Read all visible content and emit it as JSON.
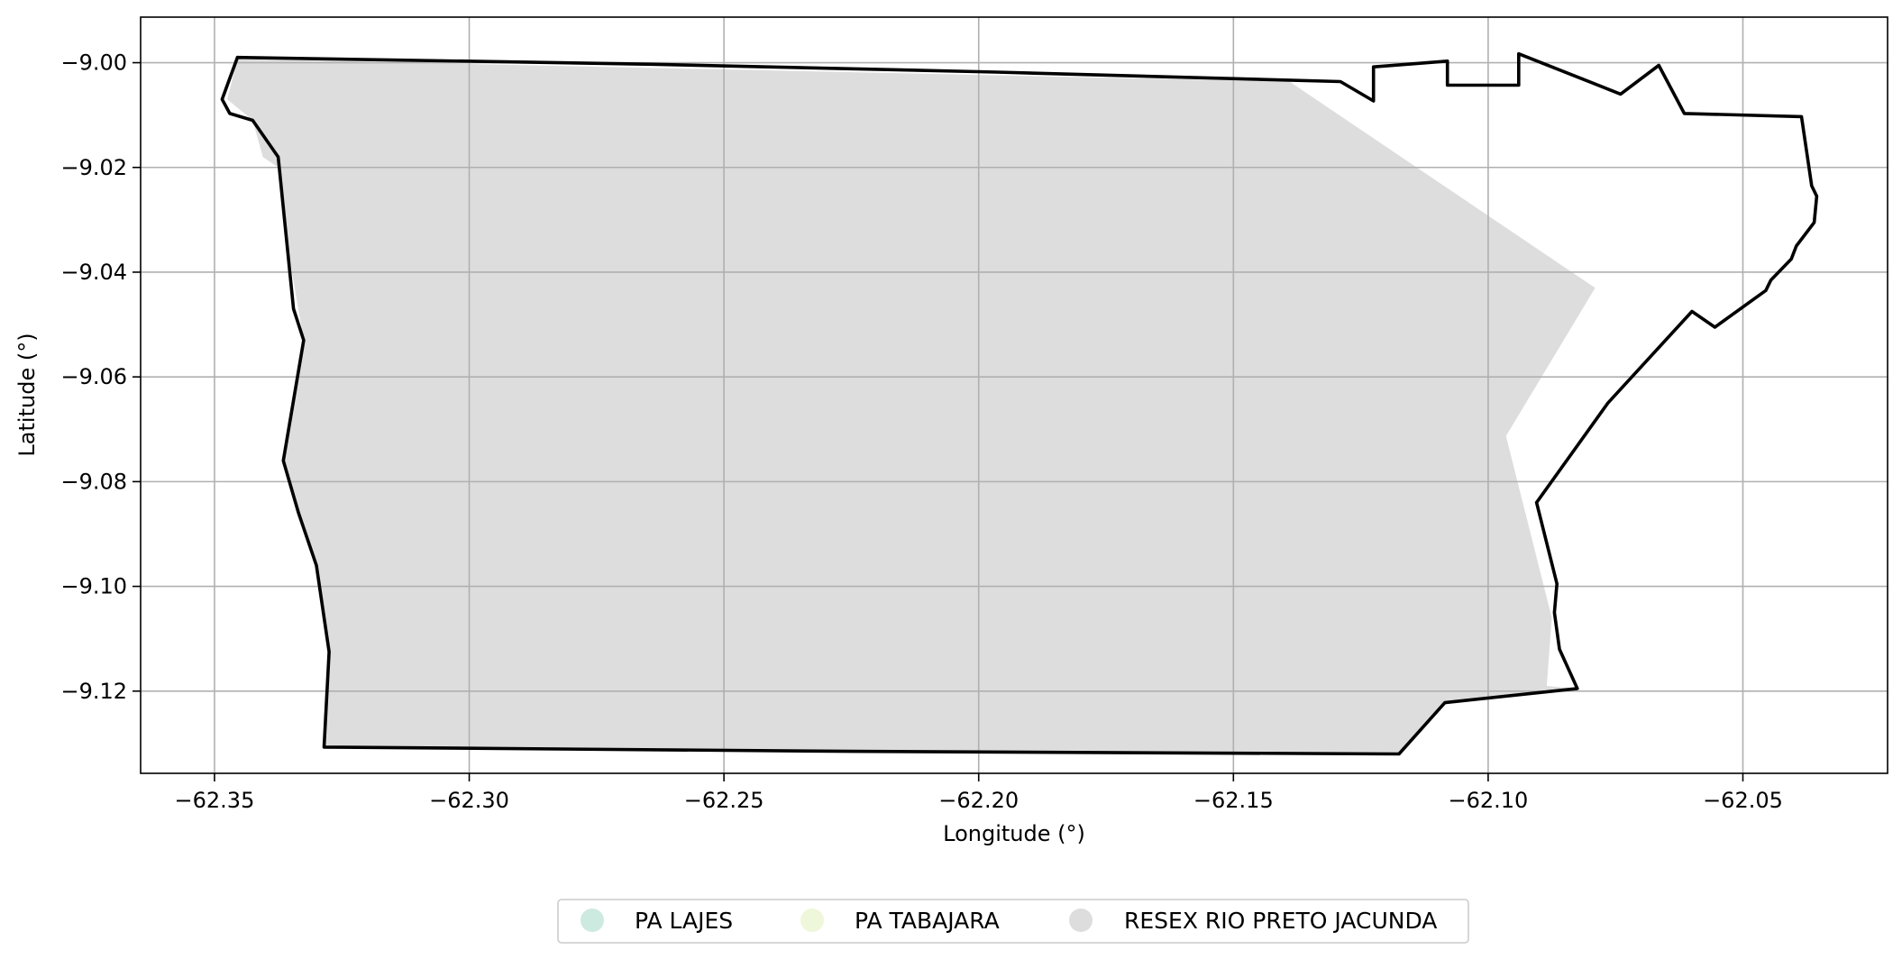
{
  "chart_data": {
    "type": "map",
    "xlabel": "Longitude (°)",
    "ylabel": "Latitude (°)",
    "xlim": [
      -62.3645,
      -62.0216
    ],
    "ylim": [
      -9.1357,
      -8.9913
    ],
    "xticks": [
      -62.35,
      -62.3,
      -62.25,
      -62.2,
      -62.15,
      -62.1,
      -62.05
    ],
    "xtick_labels": [
      "−62.35",
      "−62.30",
      "−62.25",
      "−62.20",
      "−62.15",
      "−62.10",
      "−62.05"
    ],
    "yticks": [
      -9.0,
      -9.02,
      -9.04,
      -9.06,
      -9.08,
      -9.1,
      -9.12
    ],
    "ytick_labels": [
      "−9.00",
      "−9.02",
      "−9.04",
      "−9.06",
      "−9.08",
      "−9.10",
      "−9.12"
    ],
    "grid": true,
    "legend_position": "bottom-center",
    "legend": [
      {
        "label": "PA LAJES",
        "color": "#cdeae0"
      },
      {
        "label": "PA TABAJARA",
        "color": "#eef7d9"
      },
      {
        "label": "RESEX RIO PRETO JACUNDA",
        "color": "#dddddd"
      }
    ],
    "filled_region": {
      "name": "RESEX RIO PRETO JACUNDA",
      "color": "#dddddd",
      "coords": [
        [
          -62.3455,
          -8.9993
        ],
        [
          -62.139,
          -9.0036
        ],
        [
          -62.079,
          -9.043
        ],
        [
          -62.0965,
          -9.0713
        ],
        [
          -62.0875,
          -9.106
        ],
        [
          -62.0885,
          -9.119
        ],
        [
          -62.083,
          -9.1195
        ],
        [
          -62.1085,
          -9.122
        ],
        [
          -62.1175,
          -9.132
        ],
        [
          -62.3285,
          -9.1307
        ],
        [
          -62.3275,
          -9.1125
        ],
        [
          -62.33,
          -9.096
        ],
        [
          -62.3335,
          -9.086
        ],
        [
          -62.3365,
          -9.076
        ],
        [
          -62.3325,
          -9.053
        ],
        [
          -62.3355,
          -9.036
        ],
        [
          -62.3375,
          -9.02
        ],
        [
          -62.3405,
          -9.018
        ],
        [
          -62.3425,
          -9.011
        ],
        [
          -62.3475,
          -9.007
        ]
      ]
    },
    "boundary": {
      "stroke": "#000000",
      "coords": [
        [
          -62.3455,
          -8.999
        ],
        [
          -62.264,
          -9.0003
        ],
        [
          -62.1965,
          -9.0018
        ],
        [
          -62.129,
          -9.0036
        ],
        [
          -62.1225,
          -9.0073
        ],
        [
          -62.1225,
          -9.0008
        ],
        [
          -62.108,
          -8.9997
        ],
        [
          -62.108,
          -9.0043
        ],
        [
          -62.094,
          -9.0043
        ],
        [
          -62.094,
          -8.9983
        ],
        [
          -62.074,
          -9.006
        ],
        [
          -62.0665,
          -9.0005
        ],
        [
          -62.0615,
          -9.0097
        ],
        [
          -62.0385,
          -9.0103
        ],
        [
          -62.0365,
          -9.0235
        ],
        [
          -62.0355,
          -9.0255
        ],
        [
          -62.036,
          -9.0305
        ],
        [
          -62.0395,
          -9.035
        ],
        [
          -62.0405,
          -9.0375
        ],
        [
          -62.0415,
          -9.0385
        ],
        [
          -62.0445,
          -9.0415
        ],
        [
          -62.0455,
          -9.0435
        ],
        [
          -62.0555,
          -9.0505
        ],
        [
          -62.06,
          -9.0475
        ],
        [
          -62.0765,
          -9.065
        ],
        [
          -62.0905,
          -9.084
        ],
        [
          -62.0865,
          -9.0995
        ],
        [
          -62.087,
          -9.105
        ],
        [
          -62.086,
          -9.112
        ],
        [
          -62.0825,
          -9.1195
        ],
        [
          -62.1085,
          -9.1222
        ],
        [
          -62.1175,
          -9.132
        ],
        [
          -62.225,
          -9.1315
        ],
        [
          -62.3285,
          -9.1307
        ],
        [
          -62.3275,
          -9.1125
        ],
        [
          -62.33,
          -9.096
        ],
        [
          -62.3335,
          -9.086
        ],
        [
          -62.3365,
          -9.076
        ],
        [
          -62.3325,
          -9.053
        ],
        [
          -62.3345,
          -9.047
        ],
        [
          -62.3375,
          -9.018
        ],
        [
          -62.3425,
          -9.011
        ],
        [
          -62.347,
          -9.0097
        ],
        [
          -62.3485,
          -9.007
        ],
        [
          -62.3455,
          -8.999
        ]
      ]
    }
  }
}
